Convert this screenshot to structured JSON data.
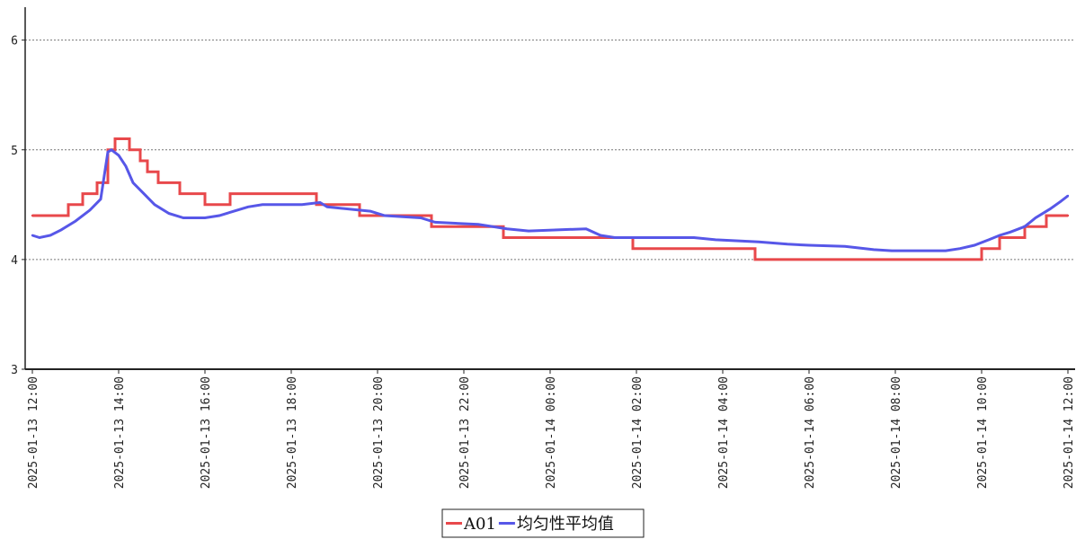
{
  "chart_data": {
    "type": "line",
    "title": "",
    "xlabel": "",
    "ylabel": "",
    "ylim": [
      3,
      6.3
    ],
    "yticks": [
      3,
      4,
      5,
      6
    ],
    "xlim": [
      "2025-01-13 11:50",
      "2025-01-14 12:10"
    ],
    "xticks": [
      "2025-01-13 12:00",
      "2025-01-13 14:00",
      "2025-01-13 16:00",
      "2025-01-13 18:00",
      "2025-01-13 20:00",
      "2025-01-13 22:00",
      "2025-01-14 00:00",
      "2025-01-14 02:00",
      "2025-01-14 04:00",
      "2025-01-14 06:00",
      "2025-01-14 08:00",
      "2025-01-14 10:00",
      "2025-01-14 12:00"
    ],
    "grid": "horizontal dotted",
    "legend": "bottom-center",
    "series": [
      {
        "name": "A01",
        "color": "#e8484b",
        "step": true,
        "points": [
          [
            "2025-01-13 12:00",
            4.4
          ],
          [
            "2025-01-13 12:50",
            4.5
          ],
          [
            "2025-01-13 13:10",
            4.6
          ],
          [
            "2025-01-13 13:30",
            4.7
          ],
          [
            "2025-01-13 13:45",
            5.0
          ],
          [
            "2025-01-13 13:55",
            5.1
          ],
          [
            "2025-01-13 14:15",
            5.0
          ],
          [
            "2025-01-13 14:30",
            4.9
          ],
          [
            "2025-01-13 14:40",
            4.8
          ],
          [
            "2025-01-13 14:55",
            4.7
          ],
          [
            "2025-01-13 15:25",
            4.6
          ],
          [
            "2025-01-13 16:00",
            4.5
          ],
          [
            "2025-01-13 16:35",
            4.6
          ],
          [
            "2025-01-13 18:35",
            4.5
          ],
          [
            "2025-01-13 19:35",
            4.4
          ],
          [
            "2025-01-13 21:15",
            4.3
          ],
          [
            "2025-01-13 22:55",
            4.2
          ],
          [
            "2025-01-14 01:55",
            4.1
          ],
          [
            "2025-01-14 04:45",
            4.0
          ],
          [
            "2025-01-14 10:00",
            4.1
          ],
          [
            "2025-01-14 10:25",
            4.2
          ],
          [
            "2025-01-14 11:00",
            4.3
          ],
          [
            "2025-01-14 11:30",
            4.4
          ],
          [
            "2025-01-14 12:00",
            4.4
          ]
        ]
      },
      {
        "name": "均匀性平均值",
        "color": "#5757e8",
        "step": false,
        "points": [
          [
            "2025-01-13 12:00",
            4.22
          ],
          [
            "2025-01-13 12:10",
            4.2
          ],
          [
            "2025-01-13 12:25",
            4.22
          ],
          [
            "2025-01-13 12:40",
            4.27
          ],
          [
            "2025-01-13 13:00",
            4.35
          ],
          [
            "2025-01-13 13:20",
            4.45
          ],
          [
            "2025-01-13 13:35",
            4.55
          ],
          [
            "2025-01-13 13:45",
            4.98
          ],
          [
            "2025-01-13 13:50",
            5.0
          ],
          [
            "2025-01-13 14:00",
            4.95
          ],
          [
            "2025-01-13 14:10",
            4.85
          ],
          [
            "2025-01-13 14:20",
            4.7
          ],
          [
            "2025-01-13 14:35",
            4.6
          ],
          [
            "2025-01-13 14:50",
            4.5
          ],
          [
            "2025-01-13 15:10",
            4.42
          ],
          [
            "2025-01-13 15:30",
            4.38
          ],
          [
            "2025-01-13 16:00",
            4.38
          ],
          [
            "2025-01-13 16:20",
            4.4
          ],
          [
            "2025-01-13 16:45",
            4.45
          ],
          [
            "2025-01-13 17:00",
            4.48
          ],
          [
            "2025-01-13 17:20",
            4.5
          ],
          [
            "2025-01-13 18:15",
            4.5
          ],
          [
            "2025-01-13 18:40",
            4.52
          ],
          [
            "2025-01-13 18:50",
            4.48
          ],
          [
            "2025-01-13 19:50",
            4.44
          ],
          [
            "2025-01-13 20:10",
            4.4
          ],
          [
            "2025-01-13 21:00",
            4.38
          ],
          [
            "2025-01-13 21:20",
            4.34
          ],
          [
            "2025-01-13 22:20",
            4.32
          ],
          [
            "2025-01-13 23:00",
            4.28
          ],
          [
            "2025-01-13 23:30",
            4.26
          ],
          [
            "2025-01-14 00:50",
            4.28
          ],
          [
            "2025-01-14 01:10",
            4.22
          ],
          [
            "2025-01-14 01:30",
            4.2
          ],
          [
            "2025-01-14 03:20",
            4.2
          ],
          [
            "2025-01-14 03:50",
            4.18
          ],
          [
            "2025-01-14 04:50",
            4.16
          ],
          [
            "2025-01-14 05:30",
            4.14
          ],
          [
            "2025-01-14 06:00",
            4.13
          ],
          [
            "2025-01-14 06:50",
            4.12
          ],
          [
            "2025-01-14 07:30",
            4.09
          ],
          [
            "2025-01-14 07:55",
            4.08
          ],
          [
            "2025-01-14 09:10",
            4.08
          ],
          [
            "2025-01-14 09:30",
            4.1
          ],
          [
            "2025-01-14 09:50",
            4.13
          ],
          [
            "2025-01-14 10:10",
            4.18
          ],
          [
            "2025-01-14 10:25",
            4.22
          ],
          [
            "2025-01-14 10:40",
            4.25
          ],
          [
            "2025-01-14 11:00",
            4.3
          ],
          [
            "2025-01-14 11:15",
            4.38
          ],
          [
            "2025-01-14 11:35",
            4.46
          ],
          [
            "2025-01-14 11:50",
            4.53
          ],
          [
            "2025-01-14 12:00",
            4.58
          ]
        ]
      }
    ]
  }
}
